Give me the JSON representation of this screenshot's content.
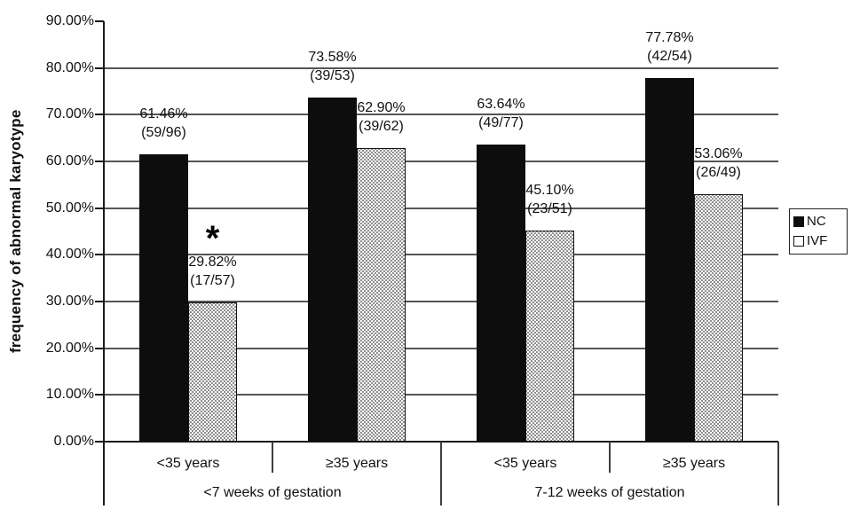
{
  "chart_data": {
    "type": "bar",
    "title": "",
    "xlabel": "",
    "ylabel": "frequency of abnormal karyotype",
    "ylim": [
      0,
      90
    ],
    "grid": "horizontal",
    "gridline_values": [
      10,
      20,
      30,
      40,
      50,
      60,
      70,
      80
    ],
    "ytick_labels": [
      "0.00%",
      "10.00%",
      "20.00%",
      "30.00%",
      "40.00%",
      "50.00%",
      "60.00%",
      "70.00%",
      "80.00%",
      "90.00%"
    ],
    "categories_level1": [
      "<35 years",
      "≥35 years",
      "<35 years",
      "≥35 years"
    ],
    "categories_level2": [
      {
        "label": "<7 weeks of gestation",
        "span": [
          0,
          2
        ]
      },
      {
        "label": "7-12 weeks of gestation",
        "span": [
          2,
          4
        ]
      }
    ],
    "series": [
      {
        "name": "NC",
        "style": "solid-black",
        "values": [
          61.46,
          73.58,
          63.64,
          77.78
        ],
        "data_labels": [
          [
            "61.46%",
            "(59/96)"
          ],
          [
            "73.58%",
            "(39/53)"
          ],
          [
            "63.64%",
            "(49/77)"
          ],
          [
            "77.78%",
            "(42/54)"
          ]
        ]
      },
      {
        "name": "IVF",
        "style": "dotted-white",
        "values": [
          29.82,
          62.9,
          45.1,
          53.06
        ],
        "data_labels": [
          [
            "29.82%",
            "(17/57)"
          ],
          [
            "62.90%",
            "(39/62)"
          ],
          [
            "45.10%",
            "(23/51)"
          ],
          [
            "53.06%",
            "(26/49)"
          ]
        ]
      }
    ],
    "annotations": [
      {
        "text": "*",
        "series": "IVF",
        "group_index": 0
      }
    ],
    "legend_position": "right-outside"
  },
  "legend": {
    "items": [
      {
        "label": "NC",
        "swatch": "solid-black"
      },
      {
        "label": "IVF",
        "swatch": "dotted-white"
      }
    ]
  },
  "colors": {
    "bar_nc": "#0d0d0d",
    "bar_ivf_background": "#ffffff",
    "bar_ivf_dots": "#858585",
    "gridline": "#555555",
    "axis": "#1a1a1a",
    "text": "#111111",
    "background": "#ffffff"
  }
}
